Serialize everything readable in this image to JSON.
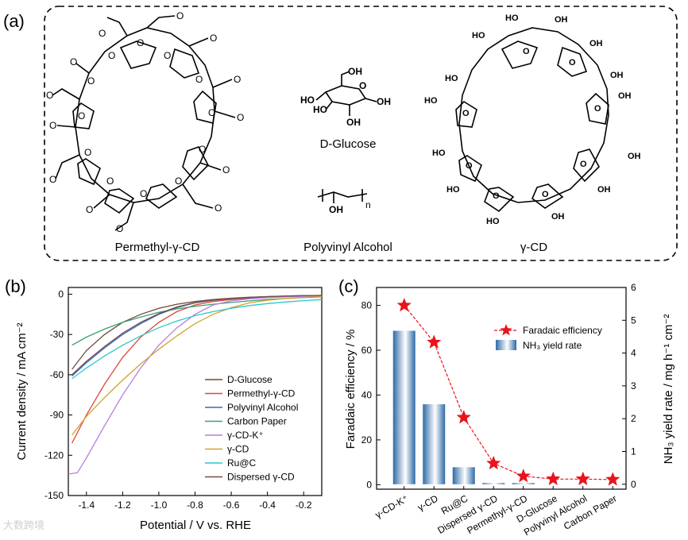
{
  "panel_a": {
    "label": "(a)",
    "molecules": {
      "permethyl": "Permethyl-γ-CD",
      "glucose": "D-Glucose",
      "pva": "Polyvinyl Alcohol",
      "gamma_cd": "γ-CD"
    },
    "atom_labels": {
      "oxygen": "O",
      "hydroxyl": "OH",
      "hydroxyl_left": "HO",
      "subscript_n": "n"
    }
  },
  "panel_b": {
    "label": "(b)"
  },
  "panel_c": {
    "label": "(c)"
  },
  "watermark": "大数跨境",
  "colors": {
    "d_glucose": "#6b4c3b",
    "permethyl": "#e0463d",
    "pva": "#2f6fc4",
    "carbon": "#3aa06f",
    "gcd_k": "#b57fe0",
    "gcd": "#d4a22a",
    "ruc": "#2fc6cc",
    "dispersed": "#7a4a42",
    "star": "#e8141c",
    "bar": "#2d6aa6"
  },
  "chart_data": [
    {
      "type": "line",
      "title": "",
      "xlabel": "Potential / V vs. RHE",
      "ylabel": "Current density / mA cm⁻²",
      "xlim": [
        -1.5,
        -0.1
      ],
      "ylim": [
        -150,
        5
      ],
      "xticks": [
        "-1.4",
        "-1.2",
        "-1.0",
        "-0.8",
        "-0.6",
        "-0.4",
        "-0.2"
      ],
      "xtick_values": [
        -1.4,
        -1.2,
        -1.0,
        -0.8,
        -0.6,
        -0.4,
        -0.2
      ],
      "yticks": [
        "0",
        "-30",
        "-60",
        "-90",
        "-120",
        "-150"
      ],
      "ytick_values": [
        0,
        -30,
        -60,
        -90,
        -120,
        -150
      ],
      "legend_position": "bottom-right",
      "series": [
        {
          "name": "D-Glucose",
          "color_key": "d_glucose",
          "x": [
            -1.48,
            -1.4,
            -1.3,
            -1.2,
            -1.1,
            -1.0,
            -0.9,
            -0.8,
            -0.7,
            -0.6,
            -0.5,
            -0.4,
            -0.3,
            -0.2,
            -0.1
          ],
          "y": [
            -56,
            -42,
            -30,
            -21,
            -15,
            -10.5,
            -7.5,
            -5.5,
            -4,
            -3,
            -2.3,
            -1.8,
            -1.4,
            -1.1,
            -0.9
          ]
        },
        {
          "name": "Permethyl-γ-CD",
          "color_key": "permethyl",
          "x": [
            -1.48,
            -1.4,
            -1.3,
            -1.2,
            -1.1,
            -1.0,
            -0.9,
            -0.8,
            -0.7,
            -0.6,
            -0.5,
            -0.4,
            -0.3,
            -0.2,
            -0.1
          ],
          "y": [
            -111,
            -90,
            -67,
            -47,
            -32,
            -21,
            -13,
            -8,
            -5.5,
            -4,
            -3,
            -2.3,
            -1.8,
            -1.4,
            -1.1
          ]
        },
        {
          "name": "Polyvinyl Alcohol",
          "color_key": "pva",
          "x": [
            -1.48,
            -1.4,
            -1.3,
            -1.2,
            -1.1,
            -1.0,
            -0.9,
            -0.8,
            -0.7,
            -0.6,
            -0.5,
            -0.4,
            -0.3,
            -0.2,
            -0.1
          ],
          "y": [
            -61,
            -51,
            -40,
            -30,
            -22,
            -15,
            -10,
            -6.5,
            -4.5,
            -3.3,
            -2.5,
            -1.9,
            -1.5,
            -1.2,
            -1.0
          ]
        },
        {
          "name": "Carbon Paper",
          "color_key": "carbon",
          "x": [
            -1.48,
            -1.4,
            -1.3,
            -1.2,
            -1.1,
            -1.0,
            -0.9,
            -0.8,
            -0.7,
            -0.6,
            -0.5,
            -0.4,
            -0.3,
            -0.2,
            -0.1
          ],
          "y": [
            -38,
            -32,
            -26,
            -21,
            -17,
            -13.5,
            -11,
            -9,
            -7.5,
            -6.2,
            -5,
            -4,
            -3.2,
            -2.5,
            -2
          ]
        },
        {
          "name": "γ-CD-K⁺",
          "color_key": "gcd_k",
          "x": [
            -1.5,
            -1.45,
            -1.4,
            -1.3,
            -1.2,
            -1.1,
            -1.0,
            -0.9,
            -0.8,
            -0.7,
            -0.6,
            -0.5,
            -0.4,
            -0.3,
            -0.2,
            -0.1
          ],
          "y": [
            -134,
            -133,
            -122,
            -98,
            -75,
            -55,
            -38,
            -25,
            -15,
            -8,
            -5,
            -3.5,
            -2.6,
            -2,
            -1.6,
            -1.3
          ]
        },
        {
          "name": "γ-CD",
          "color_key": "gcd",
          "x": [
            -1.48,
            -1.4,
            -1.3,
            -1.2,
            -1.1,
            -1.0,
            -0.9,
            -0.8,
            -0.7,
            -0.6,
            -0.5,
            -0.4,
            -0.3,
            -0.2,
            -0.1
          ],
          "y": [
            -105,
            -91,
            -77,
            -64,
            -52,
            -41,
            -31,
            -22,
            -15,
            -10,
            -6.5,
            -4.5,
            -3.2,
            -2.4,
            -1.8
          ]
        },
        {
          "name": "Ru@C",
          "color_key": "ruc",
          "x": [
            -1.48,
            -1.4,
            -1.3,
            -1.2,
            -1.1,
            -1.0,
            -0.9,
            -0.8,
            -0.7,
            -0.6,
            -0.5,
            -0.4,
            -0.3,
            -0.2,
            -0.1
          ],
          "y": [
            -63,
            -55,
            -46,
            -38,
            -31,
            -25,
            -20,
            -16,
            -13,
            -10.5,
            -8.5,
            -7,
            -5.8,
            -4.8,
            -4
          ]
        },
        {
          "name": "Dispersed γ-CD",
          "color_key": "dispersed",
          "x": [
            -1.48,
            -1.4,
            -1.3,
            -1.2,
            -1.1,
            -1.0,
            -0.9,
            -0.8,
            -0.7,
            -0.6,
            -0.5,
            -0.4,
            -0.3,
            -0.2,
            -0.1
          ],
          "y": [
            -60,
            -50,
            -39,
            -29,
            -21,
            -14.5,
            -9.5,
            -6.3,
            -4.4,
            -3.2,
            -2.4,
            -1.8,
            -1.4,
            -1.1,
            -0.9
          ]
        }
      ]
    },
    {
      "type": "bar",
      "title": "",
      "categories": [
        "γ-CD-K⁺",
        "γ-CD",
        "Ru@C",
        "Dispersed γ-CD",
        "Permethyl-γ-CD",
        "D-Glucose",
        "Polyvinyl Alcohol",
        "Carbon Paper"
      ],
      "ylabel_left": "Faradaic efficiency / %",
      "ylabel_right": "NH₃ yield rate / mg h⁻¹ cm⁻²",
      "ylim_left": [
        -2,
        88
      ],
      "ylim_right": [
        -0.15,
        6.0
      ],
      "yticks_left": [
        "0",
        "20",
        "40",
        "60",
        "80"
      ],
      "ytick_values_left": [
        0,
        20,
        40,
        60,
        80
      ],
      "yticks_right": [
        "0",
        "1",
        "2",
        "3",
        "4",
        "5",
        "6"
      ],
      "ytick_values_right": [
        0,
        1,
        2,
        3,
        4,
        5,
        6
      ],
      "legend_position": "top-right",
      "series": [
        {
          "name": "Faradaic efficiency",
          "kind": "line-star",
          "axis": "left",
          "values": [
            80,
            63.5,
            30,
            9.5,
            3.8,
            2.5,
            2.5,
            2.3
          ]
        },
        {
          "name": "NH₃ yield rate",
          "kind": "bar",
          "axis": "right",
          "values": [
            4.68,
            2.44,
            0.52,
            0.03,
            0.02,
            0.0,
            0.0,
            0.0
          ]
        }
      ]
    }
  ]
}
